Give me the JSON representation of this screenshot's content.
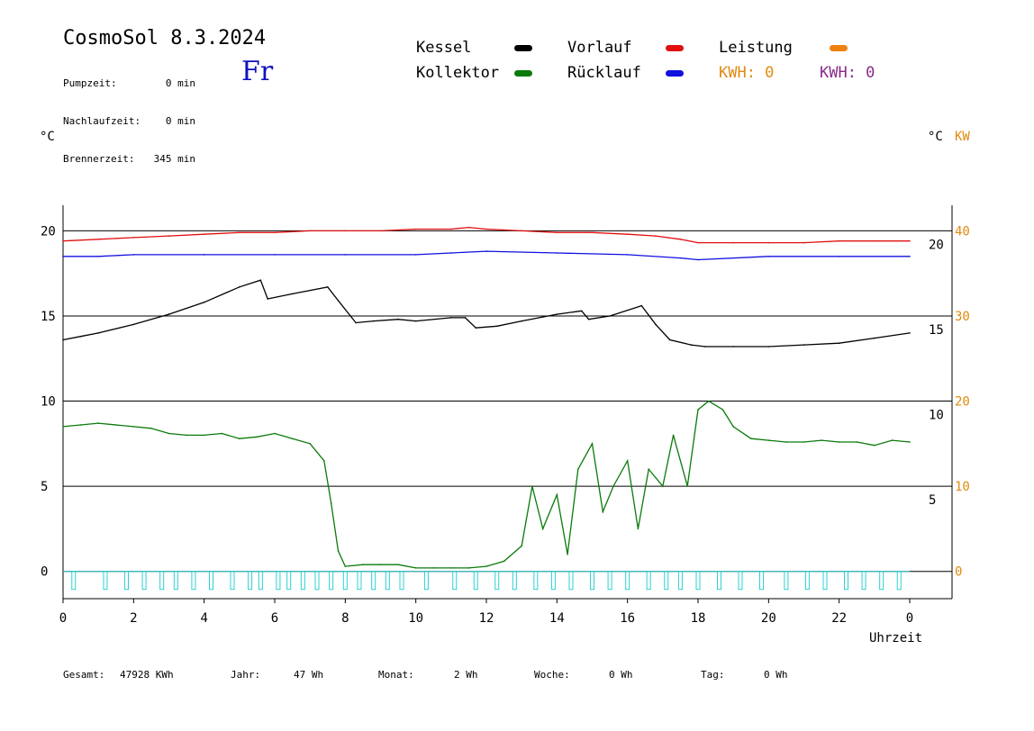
{
  "header": {
    "title": "CosmoSol 8.3.2024",
    "weekday": "Fr",
    "stats": [
      {
        "label": "Pumpzeit:",
        "value": "0 min"
      },
      {
        "label": "Nachlaufzeit:",
        "value": "0 min"
      },
      {
        "label": "Brennerzeit:",
        "value": "345 min"
      }
    ]
  },
  "legend": {
    "kessel": {
      "label": "Kessel",
      "color": "#000000"
    },
    "kollektor": {
      "label": "Kollektor",
      "color": "#0a7a0a"
    },
    "vorlauf": {
      "label": "Vorlauf",
      "color": "#e01010"
    },
    "ruecklauf": {
      "label": "Rücklauf",
      "color": "#1010e0"
    },
    "leistung": {
      "label": "Leistung",
      "color": "#f08010"
    },
    "kwh1": {
      "label": "KWH: 0",
      "color": "#e08a10"
    },
    "kwh2": {
      "label": "KWH: 0",
      "color": "#8a2a8a"
    }
  },
  "axes": {
    "left_unit": "°C",
    "right_unit": "°C",
    "right_unit2": "KW",
    "x_title": "Uhrzeit"
  },
  "footer": [
    {
      "label": "Gesamt:",
      "value": "47928 KWh"
    },
    {
      "label": "Jahr:",
      "value": "47 Wh"
    },
    {
      "label": "Monat:",
      "value": "2 Wh"
    },
    {
      "label": "Woche:",
      "value": "0 Wh"
    },
    {
      "label": "Tag:",
      "value": "0 Wh"
    }
  ],
  "chart_data": {
    "type": "line",
    "xlabel": "Uhrzeit",
    "ylabel": "°C",
    "x_ticks": [
      "0",
      "2",
      "4",
      "6",
      "8",
      "10",
      "12",
      "14",
      "16",
      "18",
      "20",
      "22",
      "0"
    ],
    "x_range": [
      0,
      24
    ],
    "y_left_ticks": [
      0,
      5,
      10,
      15,
      20
    ],
    "y_left_range": [
      -1.6,
      21.5
    ],
    "y_right_inner_ticks": [
      5,
      10,
      15,
      20
    ],
    "y_right_kw_ticks": [
      0,
      10,
      20,
      30,
      40
    ],
    "grid": "horizontal",
    "series": [
      {
        "name": "Vorlauf",
        "color": "#e01010",
        "x": [
          0,
          1,
          2,
          3,
          4,
          5,
          6,
          7,
          8,
          9,
          10,
          11,
          11.5,
          12,
          13,
          14,
          15,
          16,
          16.8,
          17.5,
          18,
          19,
          20,
          21,
          22,
          23,
          24
        ],
        "y": [
          19.4,
          19.5,
          19.6,
          19.7,
          19.8,
          19.9,
          19.9,
          20.0,
          20.0,
          20.0,
          20.1,
          20.1,
          20.2,
          20.1,
          20.0,
          19.9,
          19.9,
          19.8,
          19.7,
          19.5,
          19.3,
          19.3,
          19.3,
          19.3,
          19.4,
          19.4,
          19.4
        ]
      },
      {
        "name": "Rücklauf",
        "color": "#1010e0",
        "x": [
          0,
          1,
          2,
          4,
          6,
          8,
          10,
          11,
          12,
          14,
          16,
          17.5,
          18,
          20,
          22,
          24
        ],
        "y": [
          18.5,
          18.5,
          18.6,
          18.6,
          18.6,
          18.6,
          18.6,
          18.7,
          18.8,
          18.7,
          18.6,
          18.4,
          18.3,
          18.5,
          18.5,
          18.5
        ]
      },
      {
        "name": "Kessel",
        "color": "#000000",
        "x": [
          0,
          0.5,
          1,
          2,
          3,
          4,
          5,
          5.6,
          5.8,
          6.5,
          7.5,
          7.8,
          8.3,
          8.8,
          9.5,
          10,
          11,
          11.4,
          11.7,
          12.3,
          13,
          14,
          14.7,
          14.9,
          15.5,
          16.4,
          16.8,
          17.2,
          17.8,
          18.2,
          19,
          20,
          21,
          22,
          23,
          24
        ],
        "y": [
          13.6,
          13.8,
          14.0,
          14.5,
          15.1,
          15.8,
          16.7,
          17.1,
          16.0,
          16.3,
          16.7,
          15.9,
          14.6,
          14.7,
          14.8,
          14.7,
          14.9,
          14.9,
          14.3,
          14.4,
          14.7,
          15.1,
          15.3,
          14.8,
          15.0,
          15.6,
          14.5,
          13.6,
          13.3,
          13.2,
          13.2,
          13.2,
          13.3,
          13.4,
          13.7,
          14.0
        ]
      },
      {
        "name": "Kollektor",
        "color": "#0a7a0a",
        "x": [
          0,
          0.5,
          1,
          1.5,
          2,
          2.5,
          3,
          3.5,
          4,
          4.5,
          5,
          5.5,
          6,
          6.5,
          7,
          7.4,
          7.6,
          7.8,
          8,
          8.5,
          9,
          9.5,
          10,
          10.5,
          11,
          11.5,
          12,
          12.5,
          13,
          13.3,
          13.6,
          14,
          14.3,
          14.6,
          15,
          15.3,
          15.6,
          16,
          16.3,
          16.6,
          17,
          17.3,
          17.7,
          18,
          18.3,
          18.7,
          19,
          19.5,
          20,
          20.5,
          21,
          21.5,
          22,
          22.5,
          23,
          23.5,
          24
        ],
        "y": [
          8.5,
          8.6,
          8.7,
          8.6,
          8.5,
          8.4,
          8.1,
          8.0,
          8.0,
          8.1,
          7.8,
          7.9,
          8.1,
          7.8,
          7.5,
          6.5,
          4.0,
          1.2,
          0.3,
          0.4,
          0.4,
          0.4,
          0.2,
          0.2,
          0.2,
          0.2,
          0.3,
          0.6,
          1.5,
          5.0,
          2.5,
          4.5,
          1.0,
          6.0,
          7.5,
          3.5,
          5.0,
          6.5,
          2.5,
          6.0,
          5.0,
          8.0,
          5.0,
          9.5,
          10.0,
          9.5,
          8.5,
          7.8,
          7.7,
          7.6,
          7.6,
          7.7,
          7.6,
          7.6,
          7.4,
          7.7,
          7.6
        ]
      },
      {
        "name": "Leistung",
        "color": "#30d0d0",
        "x": [
          0.3,
          1.2,
          1.8,
          2.3,
          2.8,
          3.2,
          3.7,
          4.2,
          4.8,
          5.3,
          5.6,
          6.1,
          6.4,
          6.8,
          7.2,
          7.6,
          8.0,
          8.4,
          8.8,
          9.2,
          9.6,
          10.3,
          11.1,
          11.7,
          12.3,
          12.8,
          13.4,
          13.9,
          14.4,
          15.0,
          15.5,
          16.0,
          16.6,
          17.1,
          17.5,
          18.0,
          18.6,
          19.2,
          19.8,
          20.5,
          21.1,
          21.6,
          22.2,
          22.7,
          23.2,
          23.7
        ],
        "y": [
          0,
          0,
          0,
          0,
          0,
          0,
          0,
          0,
          0,
          0,
          0,
          0,
          0,
          0,
          0,
          0,
          0,
          0,
          0,
          0,
          0,
          0,
          0,
          0,
          0,
          0,
          0,
          0,
          0,
          0,
          0,
          0,
          0,
          0,
          0,
          0,
          0,
          0,
          0,
          0,
          0,
          0,
          0,
          0,
          0,
          0
        ]
      }
    ]
  }
}
